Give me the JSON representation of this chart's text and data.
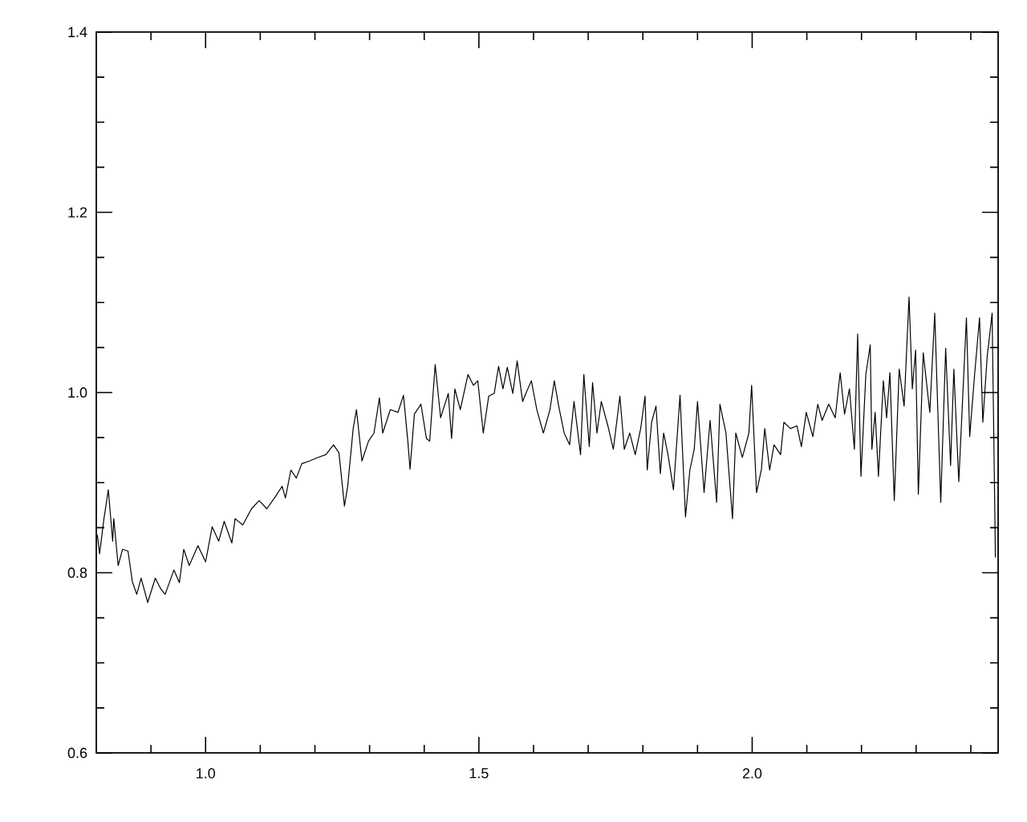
{
  "chart_data": {
    "type": "line",
    "xlim": [
      0.8,
      2.45
    ],
    "ylim": [
      0.6,
      1.4
    ],
    "xticks": [
      {
        "value": 0.9,
        "label": null
      },
      {
        "value": 1.0,
        "label": "1.0"
      },
      {
        "value": 1.1,
        "label": null
      },
      {
        "value": 1.2,
        "label": null
      },
      {
        "value": 1.3,
        "label": null
      },
      {
        "value": 1.4,
        "label": null
      },
      {
        "value": 1.5,
        "label": "1.5"
      },
      {
        "value": 1.6,
        "label": null
      },
      {
        "value": 1.7,
        "label": null
      },
      {
        "value": 1.8,
        "label": null
      },
      {
        "value": 1.9,
        "label": null
      },
      {
        "value": 2.0,
        "label": "2.0"
      },
      {
        "value": 2.1,
        "label": null
      },
      {
        "value": 2.2,
        "label": null
      },
      {
        "value": 2.3,
        "label": null
      },
      {
        "value": 2.4,
        "label": null
      }
    ],
    "yticks": [
      {
        "value": 0.6,
        "label": "0.6"
      },
      {
        "value": 0.65,
        "label": null
      },
      {
        "value": 0.7,
        "label": null
      },
      {
        "value": 0.75,
        "label": null
      },
      {
        "value": 0.8,
        "label": "0.8"
      },
      {
        "value": 0.85,
        "label": null
      },
      {
        "value": 0.9,
        "label": null
      },
      {
        "value": 0.95,
        "label": null
      },
      {
        "value": 1.0,
        "label": "1.0"
      },
      {
        "value": 1.05,
        "label": null
      },
      {
        "value": 1.1,
        "label": null
      },
      {
        "value": 1.15,
        "label": null
      },
      {
        "value": 1.2,
        "label": "1.2"
      },
      {
        "value": 1.25,
        "label": null
      },
      {
        "value": 1.3,
        "label": null
      },
      {
        "value": 1.35,
        "label": null
      },
      {
        "value": 1.4,
        "label": "1.4"
      }
    ],
    "marker": "none",
    "line_style": "solid",
    "series": [
      {
        "color": "#000000",
        "x": [
          0.802,
          0.806,
          0.814,
          0.822,
          0.83,
          0.832,
          0.84,
          0.848,
          0.858,
          0.866,
          0.874,
          0.882,
          0.894,
          0.908,
          0.918,
          0.926,
          0.942,
          0.952,
          0.96,
          0.97,
          0.986,
          1.0,
          1.012,
          1.024,
          1.034,
          1.048,
          1.054,
          1.068,
          1.084,
          1.098,
          1.112,
          1.126,
          1.14,
          1.146,
          1.156,
          1.166,
          1.176,
          1.19,
          1.206,
          1.22,
          1.234,
          1.244,
          1.254,
          1.26,
          1.27,
          1.276,
          1.286,
          1.298,
          1.308,
          1.318,
          1.324,
          1.338,
          1.352,
          1.362,
          1.37,
          1.374,
          1.382,
          1.394,
          1.404,
          1.41,
          1.42,
          1.43,
          1.444,
          1.45,
          1.456,
          1.466,
          1.48,
          1.49,
          1.498,
          1.508,
          1.518,
          1.528,
          1.536,
          1.544,
          1.552,
          1.562,
          1.57,
          1.58,
          1.586,
          1.596,
          1.606,
          1.618,
          1.63,
          1.638,
          1.646,
          1.656,
          1.666,
          1.674,
          1.686,
          1.692,
          1.702,
          1.708,
          1.716,
          1.724,
          1.736,
          1.746,
          1.758,
          1.766,
          1.776,
          1.786,
          1.796,
          1.804,
          1.808,
          1.816,
          1.824,
          1.832,
          1.838,
          1.846,
          1.856,
          1.868,
          1.878,
          1.886,
          1.894,
          1.9,
          1.912,
          1.923,
          1.935,
          1.941,
          1.952,
          1.964,
          1.97,
          1.982,
          1.994,
          1.999,
          2.008,
          2.017,
          2.023,
          2.032,
          2.04,
          2.052,
          2.058,
          2.07,
          2.082,
          2.09,
          2.099,
          2.111,
          2.12,
          2.128,
          2.14,
          2.152,
          2.161,
          2.169,
          2.178,
          2.187,
          2.193,
          2.199,
          2.208,
          2.216,
          2.219,
          2.225,
          2.231,
          2.24,
          2.246,
          2.252,
          2.26,
          2.269,
          2.278,
          2.287,
          2.293,
          2.299,
          2.304,
          2.313,
          2.325,
          2.334,
          2.345,
          2.354,
          2.363,
          2.369,
          2.378,
          2.392,
          2.398,
          2.407,
          2.416,
          2.422,
          2.43,
          2.439,
          2.442,
          2.445
        ],
        "values": [
          0.842,
          0.821,
          0.86,
          0.892,
          0.835,
          0.86,
          0.808,
          0.826,
          0.824,
          0.79,
          0.776,
          0.794,
          0.767,
          0.794,
          0.782,
          0.776,
          0.803,
          0.789,
          0.826,
          0.808,
          0.83,
          0.812,
          0.851,
          0.835,
          0.857,
          0.833,
          0.86,
          0.853,
          0.871,
          0.88,
          0.871,
          0.883,
          0.896,
          0.883,
          0.914,
          0.905,
          0.921,
          0.924,
          0.928,
          0.931,
          0.942,
          0.933,
          0.874,
          0.896,
          0.96,
          0.981,
          0.924,
          0.946,
          0.955,
          0.994,
          0.955,
          0.981,
          0.978,
          0.997,
          0.946,
          0.915,
          0.976,
          0.987,
          0.949,
          0.946,
          1.031,
          0.972,
          0.999,
          0.949,
          1.004,
          0.981,
          1.02,
          1.008,
          1.013,
          0.955,
          0.996,
          0.999,
          1.029,
          1.004,
          1.028,
          0.999,
          1.035,
          0.99,
          0.999,
          1.013,
          0.981,
          0.955,
          0.981,
          1.013,
          0.985,
          0.955,
          0.942,
          0.99,
          0.931,
          1.02,
          0.94,
          1.011,
          0.955,
          0.99,
          0.963,
          0.937,
          0.996,
          0.937,
          0.955,
          0.931,
          0.96,
          0.996,
          0.914,
          0.967,
          0.985,
          0.91,
          0.955,
          0.931,
          0.892,
          0.997,
          0.862,
          0.914,
          0.937,
          0.99,
          0.889,
          0.969,
          0.878,
          0.987,
          0.955,
          0.86,
          0.955,
          0.928,
          0.955,
          1.008,
          0.889,
          0.915,
          0.96,
          0.914,
          0.942,
          0.931,
          0.967,
          0.96,
          0.963,
          0.94,
          0.978,
          0.951,
          0.987,
          0.969,
          0.987,
          0.972,
          1.022,
          0.976,
          1.004,
          0.937,
          1.065,
          0.907,
          1.02,
          1.053,
          0.937,
          0.978,
          0.907,
          1.013,
          0.972,
          1.022,
          0.88,
          1.026,
          0.985,
          1.106,
          1.004,
          1.047,
          0.887,
          1.044,
          0.978,
          1.088,
          0.878,
          1.049,
          0.919,
          1.026,
          0.901,
          1.083,
          0.951,
          1.02,
          1.083,
          0.967,
          1.04,
          1.088,
          0.955,
          0.817
        ]
      }
    ]
  }
}
